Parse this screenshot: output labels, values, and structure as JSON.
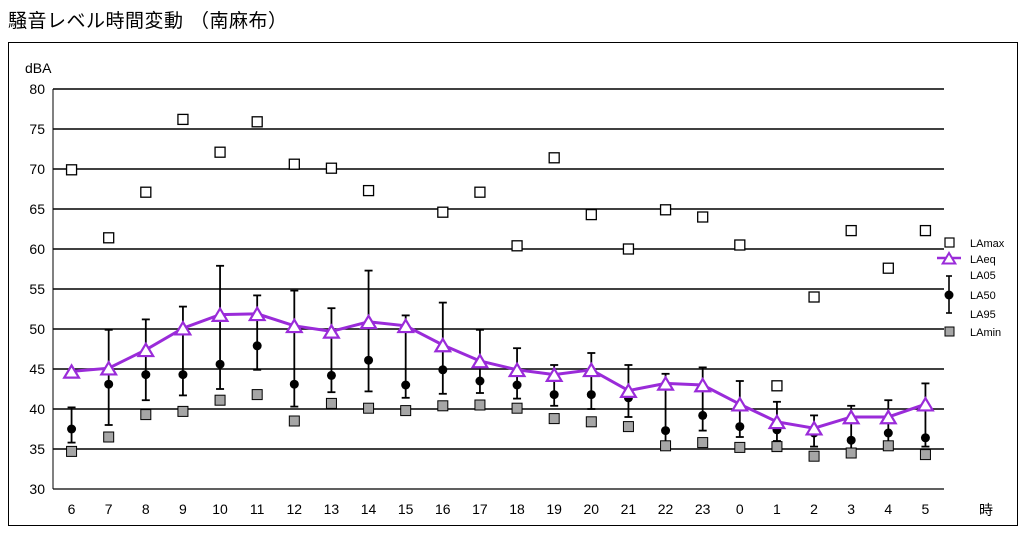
{
  "title": "騒音レベル時間変動 （南麻布）",
  "chart_data": {
    "type": "line",
    "ylabel": "dBA",
    "xlabel": "時",
    "ylim": [
      30,
      80
    ],
    "yticks": [
      30,
      35,
      40,
      45,
      50,
      55,
      60,
      65,
      70,
      75,
      80
    ],
    "categories": [
      "6",
      "7",
      "8",
      "9",
      "10",
      "11",
      "12",
      "13",
      "14",
      "15",
      "16",
      "17",
      "18",
      "19",
      "20",
      "21",
      "22",
      "23",
      "0",
      "1",
      "2",
      "3",
      "4",
      "5"
    ],
    "series": [
      {
        "name": "LAmax",
        "values": [
          69.9,
          61.4,
          67.1,
          76.2,
          72.1,
          75.9,
          70.6,
          70.1,
          67.3,
          null,
          64.6,
          67.1,
          60.4,
          71.4,
          64.3,
          60.0,
          64.9,
          64.0,
          60.5,
          42.9,
          54.0,
          62.3,
          57.6,
          62.3
        ]
      },
      {
        "name": "LAeq",
        "values": [
          44.7,
          45.1,
          47.4,
          50.1,
          51.8,
          51.9,
          50.4,
          49.7,
          50.9,
          50.4,
          48.0,
          46.0,
          44.9,
          44.3,
          44.9,
          42.3,
          43.2,
          43.0,
          40.6,
          38.4,
          37.6,
          39.0,
          39.0,
          40.6
        ]
      },
      {
        "name": "LA05",
        "values": [
          40.2,
          49.9,
          51.2,
          52.8,
          57.9,
          54.2,
          54.8,
          52.6,
          57.3,
          51.7,
          53.3,
          49.9,
          47.6,
          45.5,
          47.0,
          45.5,
          44.4,
          45.2,
          43.5,
          40.9,
          39.2,
          40.4,
          41.1,
          43.2
        ]
      },
      {
        "name": "LA50",
        "values": [
          37.5,
          43.1,
          44.3,
          44.3,
          45.6,
          47.9,
          43.1,
          44.2,
          46.1,
          43.0,
          44.9,
          43.5,
          43.0,
          41.8,
          41.8,
          41.4,
          37.3,
          39.2,
          37.8,
          37.4,
          37.0,
          36.1,
          37.0,
          36.4
        ]
      },
      {
        "name": "LA95",
        "values": [
          35.8,
          38.0,
          41.1,
          41.7,
          42.5,
          44.9,
          40.3,
          42.1,
          42.2,
          41.4,
          41.9,
          42.0,
          41.3,
          40.4,
          40.0,
          39.0,
          35.6,
          37.3,
          36.5,
          36.0,
          35.3,
          35.0,
          35.7,
          35.3
        ]
      },
      {
        "name": "LAmin",
        "values": [
          34.7,
          36.5,
          39.3,
          39.7,
          41.1,
          41.8,
          38.5,
          40.7,
          40.1,
          39.8,
          40.4,
          40.5,
          40.1,
          38.8,
          38.4,
          37.8,
          35.4,
          35.8,
          35.2,
          35.3,
          34.1,
          34.5,
          35.4,
          34.3
        ]
      }
    ],
    "legend": {
      "placement": "right",
      "entries": [
        "LAmax",
        "LAeq",
        "LA05",
        "LA50",
        "LA95",
        "LAmin"
      ]
    },
    "colors": {
      "laeq": "#9a2bd9",
      "lamin_fill": "#a6a6a6",
      "grid": "#000000"
    },
    "grid": true
  }
}
